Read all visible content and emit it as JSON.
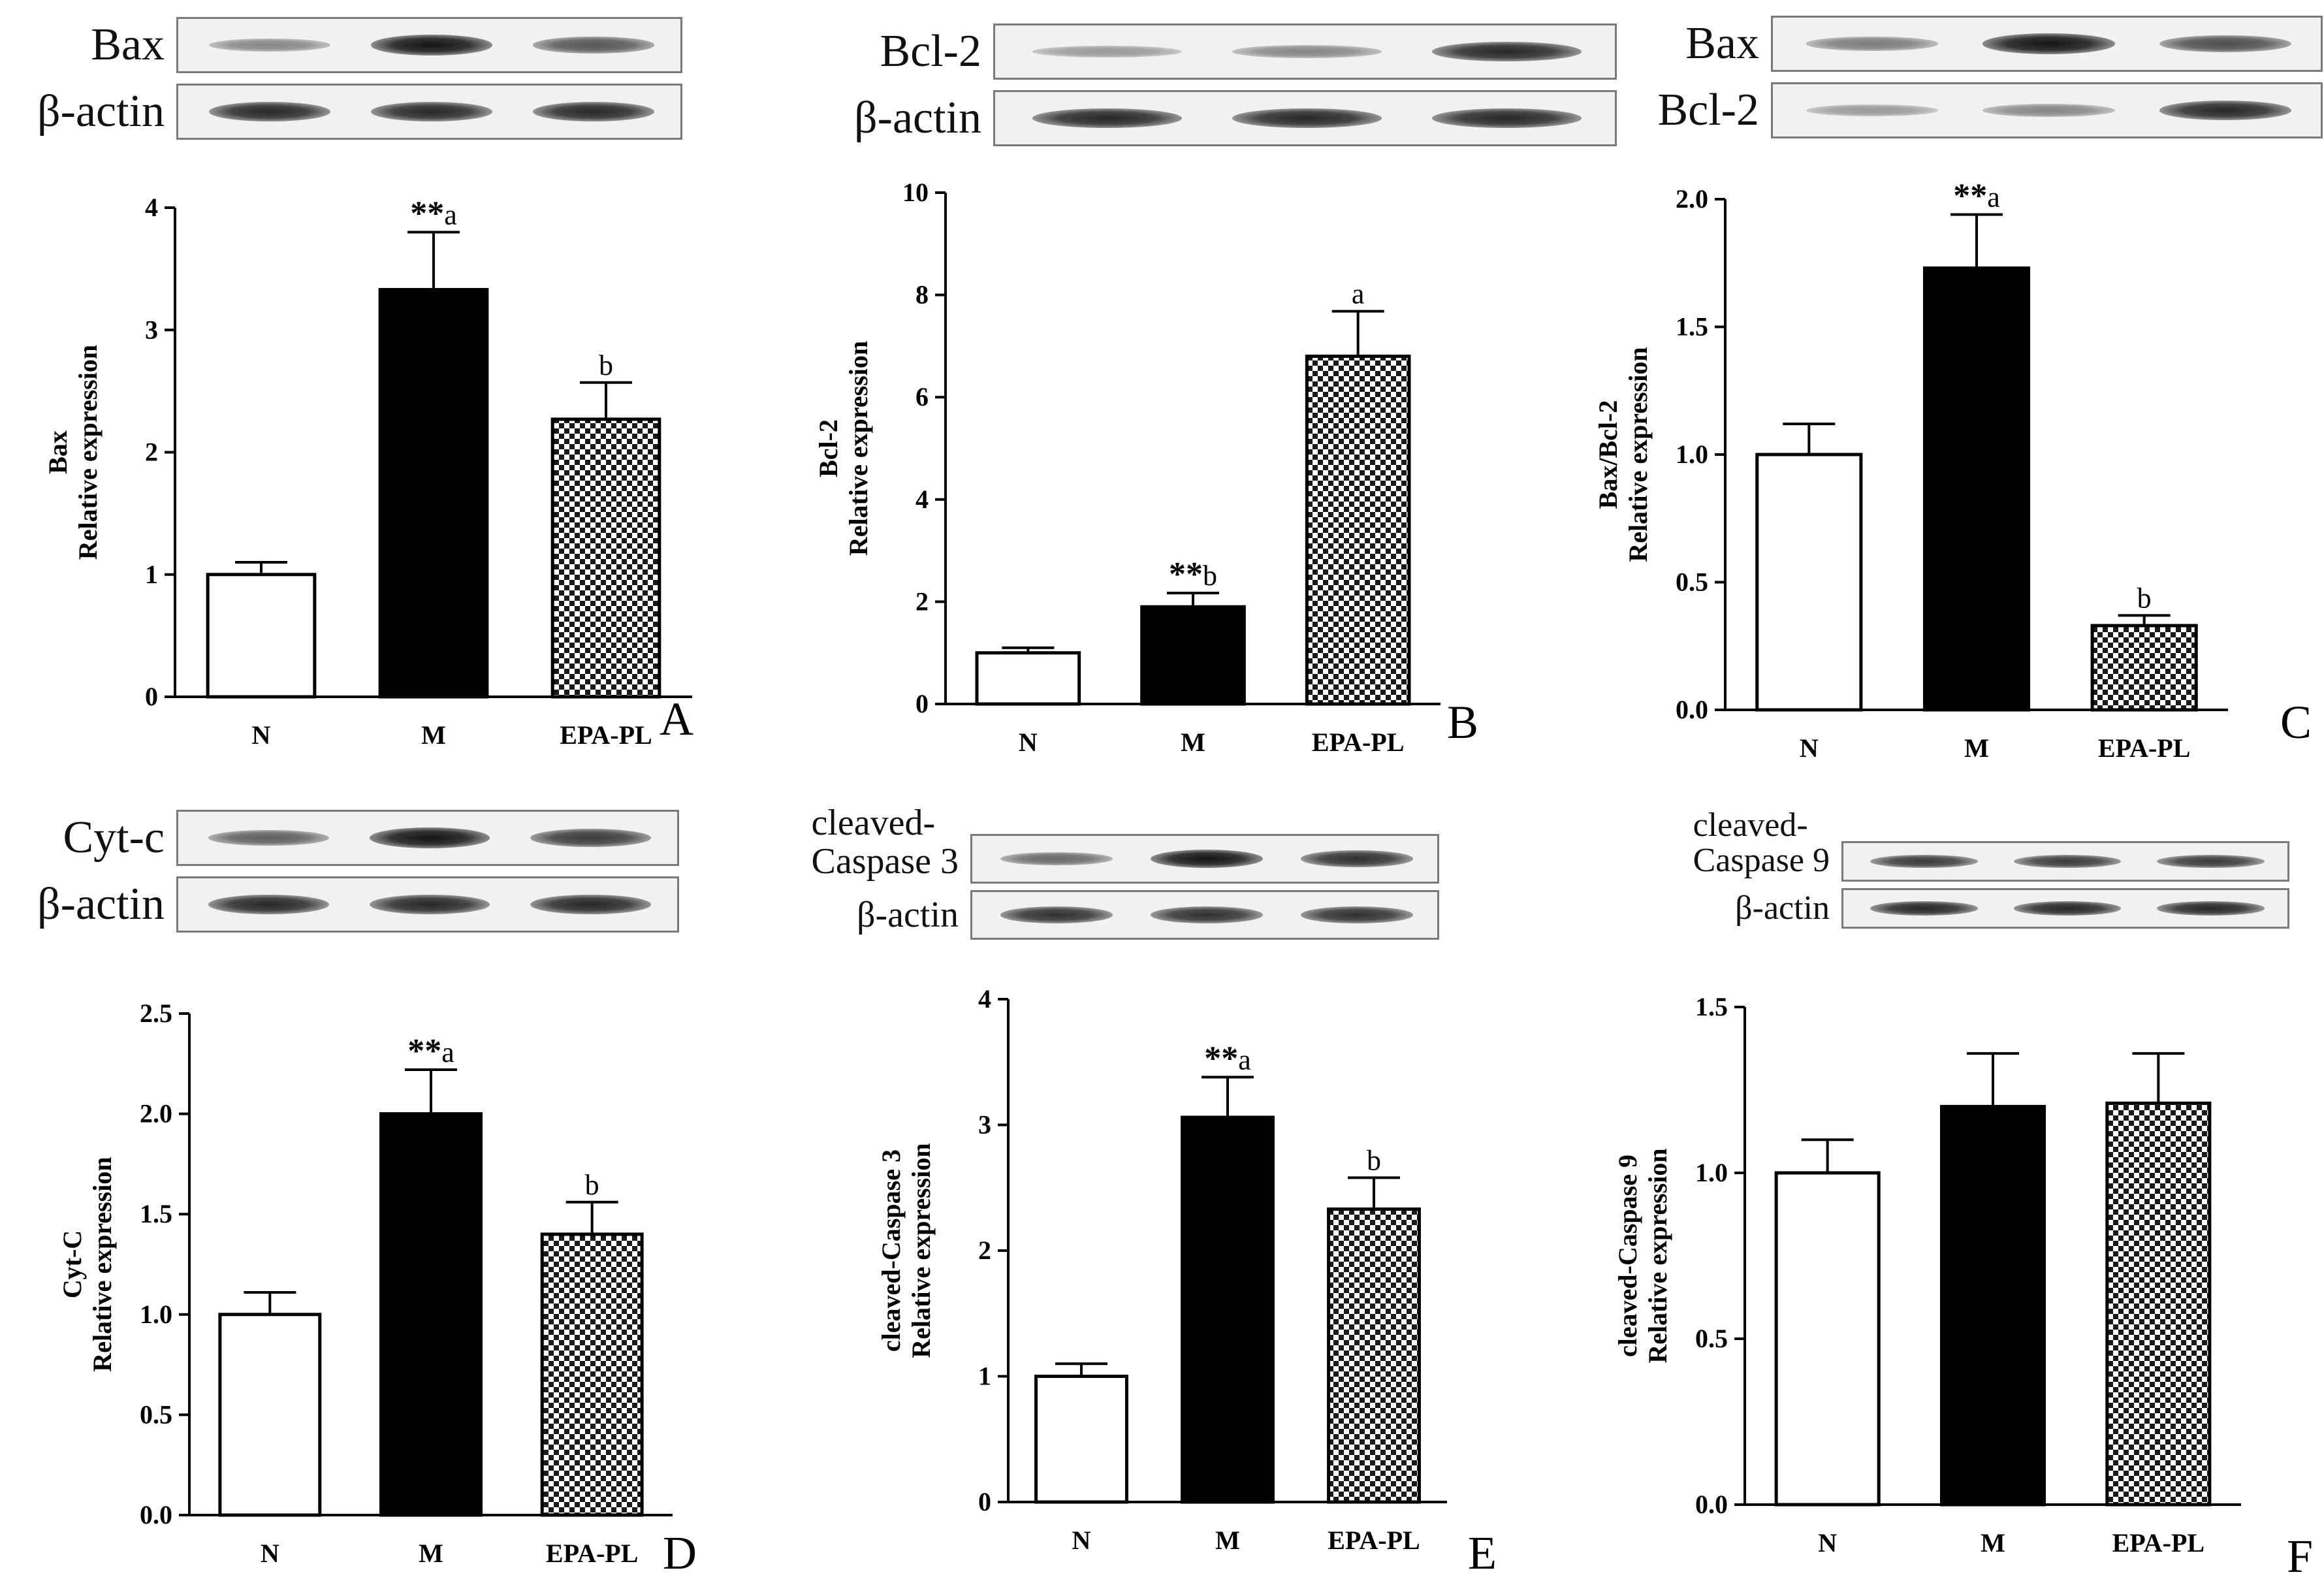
{
  "page": {
    "background": "#ffffff"
  },
  "colors": {
    "bar_N": "#ffffff",
    "bar_M": "#000000",
    "bar_EPA": "checker",
    "stroke": "#000000"
  },
  "chart_data": [
    {
      "type": "bar",
      "panel": "A",
      "categories": [
        "N",
        "M",
        "EPA-PL"
      ],
      "values": [
        1.0,
        3.33,
        2.27
      ],
      "errors": [
        0.1,
        0.47,
        0.3
      ],
      "annotations": [
        "",
        "**a",
        "b"
      ],
      "ylabel_top": "Bax",
      "ylabel_bottom": "Relative expression",
      "ylim": [
        0,
        4
      ],
      "yticks": [
        "0",
        "1",
        "2",
        "3",
        "4"
      ],
      "blots": [
        {
          "label": "Bax",
          "bands": [
            0.35,
            0.95,
            0.6
          ]
        },
        {
          "label": "β-actin",
          "bands": [
            0.85,
            0.85,
            0.85
          ]
        }
      ]
    },
    {
      "type": "bar",
      "panel": "B",
      "categories": [
        "N",
        "M",
        "EPA-PL"
      ],
      "values": [
        1.0,
        1.9,
        6.8
      ],
      "errors": [
        0.1,
        0.27,
        0.88
      ],
      "annotations": [
        "",
        "**b",
        "a"
      ],
      "ylabel_top": "Bcl-2",
      "ylabel_bottom": "Relative expression",
      "ylim": [
        0,
        10
      ],
      "yticks": [
        "0",
        "2",
        "4",
        "6",
        "8",
        "10"
      ],
      "blots": [
        {
          "label": "Bcl-2",
          "bands": [
            0.25,
            0.35,
            0.85
          ]
        },
        {
          "label": "β-actin",
          "bands": [
            0.85,
            0.85,
            0.85
          ]
        }
      ]
    },
    {
      "type": "bar",
      "panel": "C",
      "categories": [
        "N",
        "M",
        "EPA-PL"
      ],
      "values": [
        1.0,
        1.73,
        0.33
      ],
      "errors": [
        0.12,
        0.21,
        0.04
      ],
      "annotations": [
        "",
        "**a",
        "b"
      ],
      "ylabel_top": "Bax/Bcl-2",
      "ylabel_bottom": "Relative expression",
      "ylim": [
        0,
        2
      ],
      "yticks": [
        "0.0",
        "0.5",
        "1.0",
        "1.5",
        "2.0"
      ],
      "blots": [
        {
          "label": "Bax",
          "bands": [
            0.4,
            0.95,
            0.65
          ]
        },
        {
          "label": "Bcl-2",
          "bands": [
            0.25,
            0.35,
            0.85
          ]
        }
      ]
    },
    {
      "type": "bar",
      "panel": "D",
      "categories": [
        "N",
        "M",
        "EPA-PL"
      ],
      "values": [
        1.0,
        2.0,
        1.4
      ],
      "errors": [
        0.11,
        0.22,
        0.16
      ],
      "annotations": [
        "",
        "**a",
        "b"
      ],
      "ylabel_top": "Cyt-C",
      "ylabel_bottom": "Relative expression",
      "ylim": [
        0,
        2.5
      ],
      "yticks": [
        "0.0",
        "0.5",
        "1.0",
        "1.5",
        "2.0",
        "2.5"
      ],
      "blots": [
        {
          "label": "Cyt-c",
          "bands": [
            0.55,
            0.95,
            0.75
          ]
        },
        {
          "label": "β-actin",
          "bands": [
            0.85,
            0.85,
            0.85
          ]
        }
      ]
    },
    {
      "type": "bar",
      "panel": "E",
      "categories": [
        "N",
        "M",
        "EPA-PL"
      ],
      "values": [
        1.0,
        3.06,
        2.33
      ],
      "errors": [
        0.1,
        0.32,
        0.25
      ],
      "annotations": [
        "",
        "**a",
        "b"
      ],
      "ylabel_top": "cleaved-Caspase 3",
      "ylabel_bottom": "Relative expression",
      "ylim": [
        0,
        4
      ],
      "yticks": [
        "0",
        "1",
        "2",
        "3",
        "4"
      ],
      "blots": [
        {
          "label": "cleaved-\nCaspase 3",
          "bands": [
            0.5,
            0.95,
            0.8
          ]
        },
        {
          "label": "β-actin",
          "bands": [
            0.8,
            0.8,
            0.8
          ]
        }
      ]
    },
    {
      "type": "bar",
      "panel": "F",
      "categories": [
        "N",
        "M",
        "EPA-PL"
      ],
      "values": [
        1.0,
        1.2,
        1.21
      ],
      "errors": [
        0.1,
        0.16,
        0.15
      ],
      "annotations": [
        "",
        "",
        ""
      ],
      "ylabel_top": "cleaved-Caspase 9",
      "ylabel_bottom": "Relative expression",
      "ylim": [
        0,
        1.5
      ],
      "yticks": [
        "0.0",
        "0.5",
        "1.0",
        "1.5"
      ],
      "blots": [
        {
          "label": "cleaved-\nCaspase 9",
          "bands": [
            0.75,
            0.75,
            0.75
          ]
        },
        {
          "label": "β-actin",
          "bands": [
            0.85,
            0.85,
            0.85
          ]
        }
      ]
    }
  ]
}
